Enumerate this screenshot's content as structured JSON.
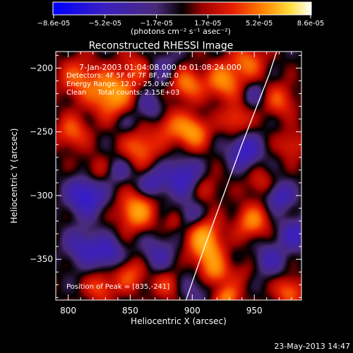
{
  "chart_data": {
    "type": "heatmap",
    "colorbar": {
      "ticks": [
        "-8.6e-05",
        "-5.2e-05",
        "-1.7e-05",
        "1.7e-05",
        "5.2e-05",
        "8.6e-05"
      ],
      "unit_label": "(photons cm⁻² s⁻¹ asec⁻²)",
      "range": [
        -8.6e-05,
        8.6e-05
      ]
    },
    "title": "Reconstructed RHESSI Image",
    "annotations": [
      "7-Jan-2003 01:04:08.000 to 01:08:24.000",
      "Detectors: 4F 5F 6F 7F 8F, Att 0",
      "Energy Range: 12.0 - 25.0 keV",
      "Clean     Total counts: 2.15E+03"
    ],
    "peak_label": "Position of Peak = [835,-241]",
    "xlabel": "Heliocentric X (arcsec)",
    "ylabel": "Heliocentric Y (arcsec)",
    "xlim": [
      790,
      988
    ],
    "ylim": [
      -382,
      -187
    ],
    "xticks": [
      800,
      850,
      900,
      950
    ],
    "xtick_labels": [
      "800",
      "850",
      "900",
      "950"
    ],
    "yticks": [
      -200,
      -250,
      -300,
      -350
    ],
    "ytick_labels": [
      "−200",
      "−250",
      "−300",
      "−350"
    ],
    "limb_curve": [
      [
        895,
        -382
      ],
      [
        910,
        -340
      ],
      [
        925,
        -300
      ],
      [
        940,
        -260
      ],
      [
        952,
        -230
      ],
      [
        962,
        -205
      ],
      [
        968,
        -187
      ]
    ],
    "sources": [
      [
        803,
        -250,
        9,
        0.55
      ],
      [
        814,
        -300,
        10,
        -0.85
      ],
      [
        812,
        -340,
        10,
        -0.55
      ],
      [
        832,
        -345,
        8,
        -0.6
      ],
      [
        826,
        -372,
        8,
        0.5
      ],
      [
        808,
        -208,
        11,
        0.55
      ],
      [
        835,
        -220,
        12,
        0.9
      ],
      [
        855,
        -200,
        9,
        0.4
      ],
      [
        848,
        -243,
        7,
        -0.2
      ],
      [
        865,
        -230,
        8,
        -0.4
      ],
      [
        858,
        -262,
        10,
        0.6
      ],
      [
        877,
        -200,
        10,
        -0.3
      ],
      [
        895,
        -212,
        9,
        0.7
      ],
      [
        882,
        -245,
        9,
        0.45
      ],
      [
        900,
        -250,
        9,
        0.8
      ],
      [
        892,
        -285,
        10,
        -0.65
      ],
      [
        868,
        -290,
        8,
        -0.5
      ],
      [
        855,
        -312,
        10,
        0.85
      ],
      [
        850,
        -362,
        9,
        0.5
      ],
      [
        872,
        -345,
        10,
        -0.4
      ],
      [
        898,
        -318,
        9,
        -0.45
      ],
      [
        908,
        -330,
        10,
        0.8
      ],
      [
        912,
        -345,
        9,
        0.6
      ],
      [
        880,
        -370,
        8,
        0.4
      ],
      [
        902,
        -372,
        9,
        -0.3
      ],
      [
        918,
        -360,
        8,
        0.6
      ],
      [
        928,
        -380,
        7,
        0.7
      ],
      [
        912,
        -294,
        8,
        0.3
      ],
      [
        925,
        -210,
        10,
        0.75
      ],
      [
        945,
        -195,
        9,
        0.6
      ],
      [
        935,
        -240,
        8,
        0.5
      ],
      [
        942,
        -265,
        9,
        -0.7
      ],
      [
        955,
        -290,
        8,
        0.35
      ],
      [
        948,
        -320,
        9,
        0.7
      ],
      [
        962,
        -350,
        9,
        -0.45
      ],
      [
        970,
        -300,
        8,
        -0.6
      ],
      [
        970,
        -225,
        9,
        0.5
      ],
      [
        980,
        -260,
        8,
        0.4
      ],
      [
        982,
        -330,
        9,
        -0.55
      ],
      [
        978,
        -375,
        8,
        0.6
      ],
      [
        940,
        -360,
        8,
        0.2
      ],
      [
        822,
        -280,
        8,
        0.3
      ],
      [
        840,
        -280,
        7,
        -0.35
      ],
      [
        885,
        -320,
        6,
        0.3
      ],
      [
        950,
        -220,
        7,
        -0.3
      ]
    ]
  },
  "footer_date": "23-May-2013 14:47"
}
